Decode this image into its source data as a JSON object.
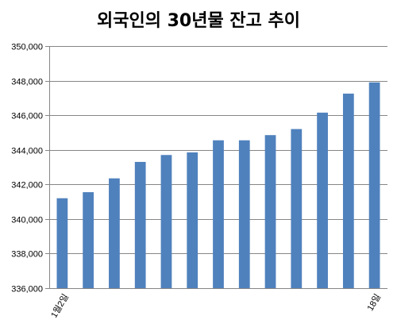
{
  "chart_data": {
    "type": "bar",
    "title": "외국인의 30년물 잔고 추이",
    "categories": [
      "1월2일",
      "",
      "",
      "",
      "",
      "",
      "",
      "",
      "",
      "",
      "",
      "",
      "18일"
    ],
    "values": [
      341200,
      341550,
      342350,
      343300,
      343700,
      343850,
      344550,
      344550,
      344850,
      345200,
      346150,
      347250,
      347900
    ],
    "ylim": [
      336000,
      350000
    ],
    "yticks": [
      336000,
      338000,
      340000,
      342000,
      344000,
      346000,
      348000,
      350000
    ],
    "ytick_labels": [
      "336,000",
      "338,000",
      "340,000",
      "342,000",
      "344,000",
      "346,000",
      "348,000",
      "350,000"
    ],
    "grid": true,
    "colors": {
      "bar": "#4f81bd",
      "grid": "#868686",
      "axis": "#868686"
    }
  }
}
